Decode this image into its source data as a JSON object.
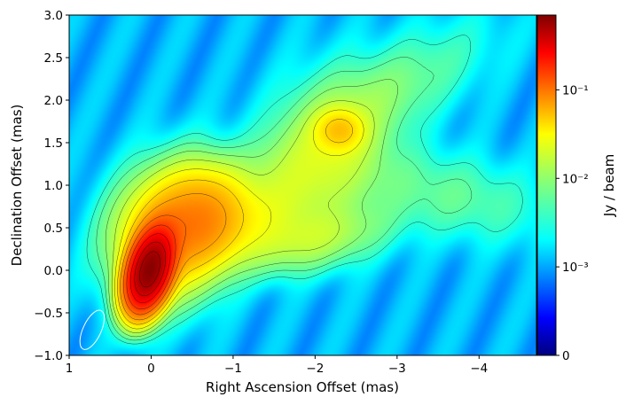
{
  "chart_data": {
    "type": "heatmap",
    "xlabel": "Right Ascension Offset (mas)",
    "ylabel": "Declination Offset (mas)",
    "colorbar_label": "Jy / beam",
    "xlim": [
      1,
      -4.7
    ],
    "ylim": [
      -1.0,
      3.0
    ],
    "x_ticks": [
      {
        "value": 1,
        "label": "1"
      },
      {
        "value": 0,
        "label": "0"
      },
      {
        "value": -1,
        "label": "−1"
      },
      {
        "value": -2,
        "label": "−2"
      },
      {
        "value": -3,
        "label": "−3"
      },
      {
        "value": -4,
        "label": "−4"
      }
    ],
    "y_ticks": [
      {
        "value": -1.0,
        "label": "−1.0"
      },
      {
        "value": -0.5,
        "label": "−0.5"
      },
      {
        "value": 0.0,
        "label": "0.0"
      },
      {
        "value": 0.5,
        "label": "0.5"
      },
      {
        "value": 1.0,
        "label": "1.0"
      },
      {
        "value": 1.5,
        "label": "1.5"
      },
      {
        "value": 2.0,
        "label": "2.0"
      },
      {
        "value": 2.5,
        "label": "2.5"
      },
      {
        "value": 3.0,
        "label": "3.0"
      }
    ],
    "colorbar": {
      "scale": "symlog",
      "range": [
        0,
        0.7
      ],
      "colormap": "jet",
      "ticks": [
        {
          "value": 0.1,
          "label": "10⁻¹"
        },
        {
          "value": 0.01,
          "label": "10⁻²"
        },
        {
          "value": 0.001,
          "label": "10⁻³"
        },
        {
          "value": 0,
          "label": "0"
        }
      ]
    },
    "background_level": 0.0015,
    "peak": {
      "x": 0.0,
      "y": 0.0,
      "value": 0.7
    },
    "components": [
      {
        "x": 0.02,
        "y": 0.0,
        "sx": 0.14,
        "sy": 0.27,
        "theta": -0.3,
        "amp": 0.62
      },
      {
        "x": -0.25,
        "y": 0.45,
        "sx": 0.38,
        "sy": 0.45,
        "theta": -0.55,
        "amp": 0.055
      },
      {
        "x": -0.65,
        "y": 0.65,
        "sx": 0.3,
        "sy": 0.35,
        "theta": -0.5,
        "amp": 0.035
      },
      {
        "x": -1.1,
        "y": 0.55,
        "sx": 0.55,
        "sy": 0.25,
        "theta": 0.3,
        "amp": 0.014
      },
      {
        "x": -1.9,
        "y": 0.35,
        "sx": 0.6,
        "sy": 0.22,
        "theta": 0.2,
        "amp": 0.012
      },
      {
        "x": -2.3,
        "y": 1.65,
        "sx": 0.18,
        "sy": 0.15,
        "theta": 0.0,
        "amp": 0.028
      },
      {
        "x": -2.2,
        "y": 1.4,
        "sx": 0.45,
        "sy": 0.55,
        "theta": -0.4,
        "amp": 0.012
      },
      {
        "x": -2.9,
        "y": 2.1,
        "sx": 0.8,
        "sy": 0.3,
        "theta": 0.5,
        "amp": 0.006
      },
      {
        "x": -3.6,
        "y": 0.9,
        "sx": 0.8,
        "sy": 0.3,
        "theta": -0.2,
        "amp": 0.005
      },
      {
        "x": -1.5,
        "y": 1.05,
        "sx": 0.6,
        "sy": 0.3,
        "theta": 0.4,
        "amp": 0.007
      }
    ],
    "beam": {
      "x": 0.72,
      "y": -0.7,
      "major": 0.5,
      "minor": 0.22,
      "pa_deg": 25,
      "color": "#ffffff"
    },
    "contour_color": "#000000"
  }
}
